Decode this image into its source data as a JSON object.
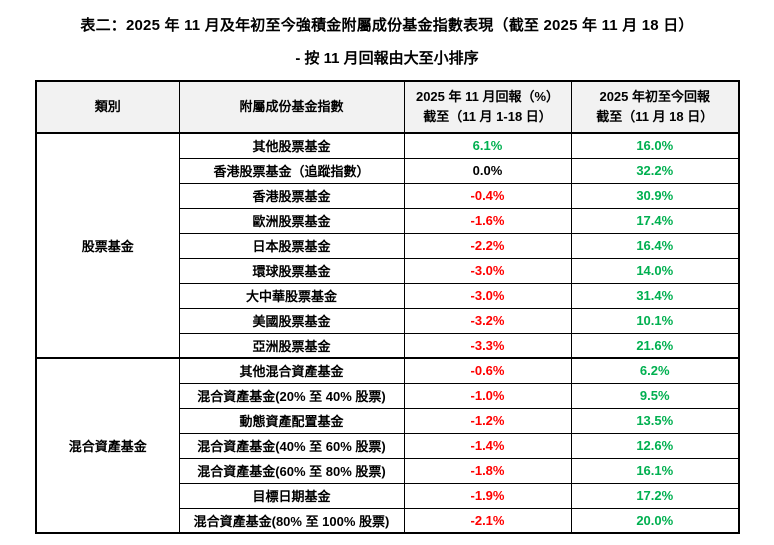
{
  "title": {
    "line1": "表二：2025 年 11 月及年初至今強積金附屬成份基金指數表現（截至 2025 年 11 月 18 日）",
    "line2": "- 按 11 月回報由大至小排序"
  },
  "table": {
    "headers": {
      "category": "類別",
      "fund_index": "附屬成份基金指數",
      "nov_return_line1": "2025 年 11 月回報（%）",
      "nov_return_line2": "截至（11 月 1-18 日）",
      "ytd_return_line1": "2025 年初至今回報",
      "ytd_return_line2": "截至（11 月 18 日）"
    },
    "colors": {
      "positive": "#00B050",
      "negative": "#FF0000",
      "neutral": "#000000",
      "header_bg": "#F2F2F2",
      "border": "#000000"
    },
    "sections": [
      {
        "category": "股票基金",
        "rows": [
          {
            "fund": "其他股票基金",
            "nov": "6.1%",
            "nov_color": "positive",
            "ytd": "16.0%",
            "ytd_color": "positive"
          },
          {
            "fund": "香港股票基金（追蹤指數）",
            "nov": "0.0%",
            "nov_color": "neutral",
            "ytd": "32.2%",
            "ytd_color": "positive"
          },
          {
            "fund": "香港股票基金",
            "nov": "-0.4%",
            "nov_color": "negative",
            "ytd": "30.9%",
            "ytd_color": "positive"
          },
          {
            "fund": "歐洲股票基金",
            "nov": "-1.6%",
            "nov_color": "negative",
            "ytd": "17.4%",
            "ytd_color": "positive"
          },
          {
            "fund": "日本股票基金",
            "nov": "-2.2%",
            "nov_color": "negative",
            "ytd": "16.4%",
            "ytd_color": "positive"
          },
          {
            "fund": "環球股票基金",
            "nov": "-3.0%",
            "nov_color": "negative",
            "ytd": "14.0%",
            "ytd_color": "positive"
          },
          {
            "fund": "大中華股票基金",
            "nov": "-3.0%",
            "nov_color": "negative",
            "ytd": "31.4%",
            "ytd_color": "positive"
          },
          {
            "fund": "美國股票基金",
            "nov": "-3.2%",
            "nov_color": "negative",
            "ytd": "10.1%",
            "ytd_color": "positive"
          },
          {
            "fund": "亞洲股票基金",
            "nov": "-3.3%",
            "nov_color": "negative",
            "ytd": "21.6%",
            "ytd_color": "positive"
          }
        ]
      },
      {
        "category": "混合資產基金",
        "rows": [
          {
            "fund": "其他混合資產基金",
            "nov": "-0.6%",
            "nov_color": "negative",
            "ytd": "6.2%",
            "ytd_color": "positive"
          },
          {
            "fund": "混合資產基金(20% 至 40% 股票)",
            "nov": "-1.0%",
            "nov_color": "negative",
            "ytd": "9.5%",
            "ytd_color": "positive"
          },
          {
            "fund": "動態資產配置基金",
            "nov": "-1.2%",
            "nov_color": "negative",
            "ytd": "13.5%",
            "ytd_color": "positive"
          },
          {
            "fund": "混合資產基金(40% 至 60% 股票)",
            "nov": "-1.4%",
            "nov_color": "negative",
            "ytd": "12.6%",
            "ytd_color": "positive"
          },
          {
            "fund": "混合資產基金(60% 至 80% 股票)",
            "nov": "-1.8%",
            "nov_color": "negative",
            "ytd": "16.1%",
            "ytd_color": "positive"
          },
          {
            "fund": "目標日期基金",
            "nov": "-1.9%",
            "nov_color": "negative",
            "ytd": "17.2%",
            "ytd_color": "positive"
          },
          {
            "fund": "混合資產基金(80% 至 100% 股票)",
            "nov": "-2.1%",
            "nov_color": "negative",
            "ytd": "20.0%",
            "ytd_color": "positive"
          }
        ]
      }
    ]
  }
}
